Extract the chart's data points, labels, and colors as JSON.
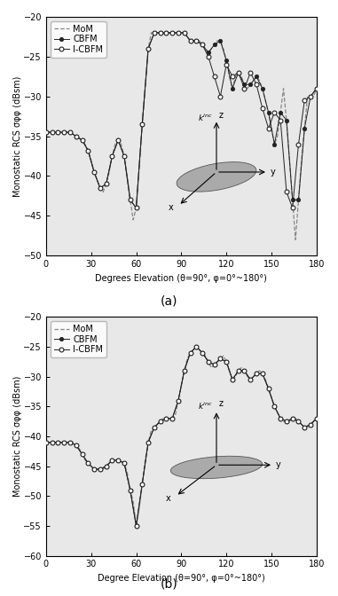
{
  "fig_width": 3.81,
  "fig_height": 6.72,
  "dpi": 100,
  "subplot_a": {
    "xlabel": "Degrees Elevation (θ=90°, φ=0°~180°)",
    "ylabel": "Monostatic RCS σφφ (dBsm)",
    "ylim": [
      -50,
      -20
    ],
    "xlim": [
      0,
      180
    ],
    "yticks": [
      -50,
      -45,
      -40,
      -35,
      -30,
      -25,
      -20
    ],
    "xticks": [
      0,
      30,
      60,
      90,
      120,
      150,
      180
    ],
    "x": [
      0,
      2,
      4,
      6,
      8,
      10,
      12,
      14,
      16,
      18,
      20,
      22,
      24,
      26,
      28,
      30,
      32,
      34,
      36,
      38,
      40,
      42,
      44,
      46,
      48,
      50,
      52,
      54,
      56,
      58,
      60,
      62,
      64,
      66,
      68,
      70,
      72,
      74,
      76,
      78,
      80,
      82,
      84,
      86,
      88,
      90,
      92,
      94,
      96,
      98,
      100,
      102,
      104,
      106,
      108,
      110,
      112,
      114,
      116,
      118,
      120,
      122,
      124,
      126,
      128,
      130,
      132,
      134,
      136,
      138,
      140,
      142,
      144,
      146,
      148,
      150,
      152,
      154,
      156,
      158,
      160,
      162,
      164,
      166,
      168,
      170,
      172,
      174,
      176,
      178,
      180
    ],
    "mom": [
      -34.5,
      -34.5,
      -34.5,
      -34.5,
      -34.5,
      -34.5,
      -34.5,
      -34.5,
      -34.5,
      -34.8,
      -35.0,
      -35.2,
      -35.5,
      -36.0,
      -36.8,
      -38.0,
      -39.5,
      -40.5,
      -41.5,
      -42.0,
      -41.0,
      -39.5,
      -37.5,
      -36.0,
      -35.5,
      -36.0,
      -37.5,
      -40.0,
      -43.0,
      -45.5,
      -44.0,
      -39.0,
      -33.5,
      -29.0,
      -24.0,
      -22.0,
      -22.0,
      -22.0,
      -22.0,
      -22.0,
      -22.0,
      -22.0,
      -22.0,
      -22.0,
      -22.0,
      -22.0,
      -22.0,
      -22.5,
      -23.0,
      -23.0,
      -23.0,
      -23.0,
      -23.5,
      -24.0,
      -24.5,
      -24.0,
      -23.5,
      -23.0,
      -23.0,
      -24.0,
      -25.5,
      -27.5,
      -29.0,
      -27.5,
      -27.0,
      -27.5,
      -28.5,
      -29.0,
      -28.5,
      -28.0,
      -27.5,
      -28.0,
      -29.0,
      -30.5,
      -32.0,
      -34.0,
      -36.0,
      -35.0,
      -32.0,
      -29.0,
      -33.0,
      -38.0,
      -43.0,
      -48.0,
      -43.0,
      -38.0,
      -34.0,
      -30.0,
      -30.0,
      -30.0,
      -29.0
    ],
    "cbfm": [
      -34.5,
      -34.5,
      -34.5,
      -34.5,
      -34.5,
      -34.5,
      -34.5,
      -34.5,
      -34.5,
      -34.8,
      -35.0,
      -35.2,
      -35.5,
      -36.0,
      -36.8,
      -38.0,
      -39.5,
      -40.5,
      -41.5,
      -42.0,
      -41.0,
      -39.5,
      -37.5,
      -36.0,
      -35.5,
      -36.0,
      -37.5,
      -40.0,
      -43.0,
      -45.5,
      -44.0,
      -39.0,
      -33.5,
      -29.0,
      -24.0,
      -22.0,
      -22.0,
      -22.0,
      -22.0,
      -22.0,
      -22.0,
      -22.0,
      -22.0,
      -22.0,
      -22.0,
      -22.0,
      -22.0,
      -22.5,
      -23.0,
      -23.0,
      -23.0,
      -23.0,
      -23.5,
      -24.0,
      -24.5,
      -24.0,
      -23.5,
      -23.0,
      -23.0,
      -24.0,
      -25.5,
      -27.5,
      -29.0,
      -27.5,
      -27.0,
      -27.5,
      -28.5,
      -29.0,
      -28.5,
      -28.0,
      -27.5,
      -28.0,
      -29.0,
      -30.5,
      -32.0,
      -34.0,
      -36.0,
      -35.0,
      -32.0,
      -29.0,
      -33.0,
      -38.0,
      -43.0,
      -48.5,
      -43.0,
      -38.0,
      -34.0,
      -30.0,
      -30.0,
      -30.0,
      -29.0
    ],
    "icbfm": [
      -34.5,
      -34.5,
      -34.5,
      -34.5,
      -34.5,
      -34.5,
      -34.5,
      -34.5,
      -34.5,
      -34.8,
      -35.0,
      -35.2,
      -35.5,
      -36.0,
      -36.8,
      -38.0,
      -39.5,
      -40.5,
      -41.5,
      -42.0,
      -41.0,
      -39.5,
      -37.5,
      -36.0,
      -35.5,
      -36.0,
      -37.5,
      -40.0,
      -43.0,
      -46.5,
      -44.0,
      -39.0,
      -33.5,
      -29.0,
      -24.0,
      -22.0,
      -22.0,
      -22.0,
      -22.0,
      -22.0,
      -22.0,
      -22.0,
      -22.0,
      -22.0,
      -22.0,
      -22.0,
      -22.0,
      -22.5,
      -23.0,
      -23.0,
      -23.0,
      -23.0,
      -23.5,
      -24.0,
      -25.0,
      -26.0,
      -27.5,
      -29.0,
      -30.0,
      -25.0,
      -26.0,
      -28.0,
      -27.5,
      -27.0,
      -27.0,
      -28.0,
      -29.0,
      -28.0,
      -27.0,
      -27.5,
      -28.5,
      -30.0,
      -31.5,
      -33.0,
      -34.0,
      -40.0,
      -32.0,
      -29.0,
      -33.0,
      -37.0,
      -42.0,
      -47.0,
      -44.0,
      -40.0,
      -36.0,
      -33.0,
      -30.5,
      -30.0,
      -30.0,
      -29.0,
      -29.0
    ]
  },
  "subplot_b": {
    "xlabel": "Degree Elevation (θ=90°, φ=0°~180°)",
    "ylabel": "Monostatic RCS σφφ (dBsm)",
    "ylim": [
      -60,
      -20
    ],
    "xlim": [
      0,
      180
    ],
    "yticks": [
      -60,
      -55,
      -50,
      -45,
      -40,
      -35,
      -30,
      -25,
      -20
    ],
    "xticks": [
      0,
      30,
      60,
      90,
      120,
      150,
      180
    ],
    "x": [
      0,
      2,
      4,
      6,
      8,
      10,
      12,
      14,
      16,
      18,
      20,
      22,
      24,
      26,
      28,
      30,
      32,
      34,
      36,
      38,
      40,
      42,
      44,
      46,
      48,
      50,
      52,
      54,
      56,
      58,
      60,
      62,
      64,
      66,
      68,
      70,
      72,
      74,
      76,
      78,
      80,
      82,
      84,
      86,
      88,
      90,
      92,
      94,
      96,
      98,
      100,
      102,
      104,
      106,
      108,
      110,
      112,
      114,
      116,
      118,
      120,
      122,
      124,
      126,
      128,
      130,
      132,
      134,
      136,
      138,
      140,
      142,
      144,
      146,
      148,
      150,
      152,
      154,
      156,
      158,
      160,
      162,
      164,
      166,
      168,
      170,
      172,
      174,
      176,
      178,
      180
    ],
    "mom": [
      -41.0,
      -41.0,
      -41.0,
      -41.0,
      -41.0,
      -41.0,
      -41.0,
      -41.0,
      -41.0,
      -41.0,
      -41.5,
      -42.0,
      -43.0,
      -44.0,
      -44.5,
      -45.0,
      -45.5,
      -45.5,
      -45.5,
      -45.5,
      -45.0,
      -44.5,
      -44.0,
      -44.0,
      -44.0,
      -44.0,
      -44.5,
      -46.0,
      -49.0,
      -51.0,
      -55.0,
      -52.0,
      -48.0,
      -44.0,
      -41.0,
      -39.0,
      -38.5,
      -38.0,
      -37.5,
      -37.0,
      -37.0,
      -37.0,
      -37.0,
      -36.5,
      -34.0,
      -31.5,
      -29.0,
      -27.0,
      -26.0,
      -25.5,
      -25.0,
      -25.5,
      -26.0,
      -26.5,
      -27.5,
      -28.5,
      -28.0,
      -27.5,
      -27.0,
      -26.5,
      -27.5,
      -29.0,
      -30.5,
      -30.0,
      -29.0,
      -28.5,
      -29.0,
      -30.0,
      -30.5,
      -30.0,
      -29.5,
      -29.0,
      -29.5,
      -30.5,
      -32.0,
      -33.5,
      -35.0,
      -36.0,
      -37.0,
      -37.5,
      -37.5,
      -37.5,
      -37.0,
      -37.0,
      -37.5,
      -38.0,
      -38.5,
      -38.5,
      -38.0,
      -37.5,
      -37.0
    ],
    "cbfm": [
      -41.0,
      -41.0,
      -41.0,
      -41.0,
      -41.0,
      -41.0,
      -41.0,
      -41.0,
      -41.0,
      -41.0,
      -41.5,
      -42.0,
      -43.0,
      -44.0,
      -44.5,
      -45.0,
      -45.5,
      -45.5,
      -45.5,
      -45.5,
      -45.0,
      -44.5,
      -44.0,
      -44.0,
      -44.0,
      -44.0,
      -44.5,
      -46.0,
      -49.0,
      -51.0,
      -55.0,
      -52.0,
      -48.0,
      -44.0,
      -41.0,
      -39.0,
      -38.5,
      -38.0,
      -37.5,
      -37.0,
      -37.0,
      -37.0,
      -37.0,
      -36.5,
      -34.0,
      -31.5,
      -29.0,
      -27.0,
      -26.0,
      -25.5,
      -25.0,
      -25.5,
      -26.0,
      -26.5,
      -27.5,
      -28.5,
      -28.0,
      -27.5,
      -27.0,
      -26.5,
      -27.5,
      -29.0,
      -30.5,
      -30.0,
      -29.0,
      -28.5,
      -29.0,
      -30.0,
      -30.5,
      -30.0,
      -29.5,
      -29.0,
      -29.5,
      -30.5,
      -32.0,
      -33.5,
      -35.0,
      -36.0,
      -37.0,
      -37.5,
      -37.5,
      -37.5,
      -37.0,
      -37.0,
      -37.5,
      -38.0,
      -38.5,
      -38.5,
      -38.0,
      -37.5,
      -37.0
    ],
    "icbfm": [
      -41.0,
      -41.0,
      -41.0,
      -41.0,
      -41.0,
      -41.0,
      -41.0,
      -41.0,
      -41.0,
      -41.0,
      -41.5,
      -42.0,
      -43.0,
      -44.0,
      -44.5,
      -45.0,
      -45.5,
      -45.5,
      -45.5,
      -45.5,
      -45.0,
      -44.5,
      -44.0,
      -44.0,
      -44.0,
      -44.0,
      -44.5,
      -46.0,
      -49.0,
      -51.0,
      -55.0,
      -52.0,
      -48.0,
      -44.0,
      -41.0,
      -39.0,
      -38.5,
      -38.0,
      -37.5,
      -37.0,
      -37.0,
      -37.0,
      -37.0,
      -36.5,
      -34.0,
      -31.5,
      -29.0,
      -27.0,
      -26.0,
      -25.5,
      -25.0,
      -25.5,
      -26.0,
      -26.5,
      -27.5,
      -28.5,
      -28.0,
      -27.5,
      -27.0,
      -26.5,
      -27.5,
      -29.0,
      -30.5,
      -30.0,
      -29.0,
      -28.5,
      -29.0,
      -30.0,
      -30.5,
      -30.0,
      -29.5,
      -29.0,
      -29.5,
      -30.5,
      -32.0,
      -33.5,
      -35.0,
      -36.0,
      -37.0,
      -37.5,
      -37.5,
      -37.5,
      -37.0,
      -37.0,
      -37.5,
      -38.0,
      -38.5,
      -38.5,
      -38.0,
      -37.5,
      -37.0
    ]
  },
  "gray_bg": "#e8e8e8",
  "mom_color": "#888888",
  "cbfm_color": "#222222",
  "icbfm_color": "#222222",
  "label_mom": "MoM",
  "label_cbfm": "CBFM",
  "label_icbfm": "I-CBFM",
  "caption_a": "(a)",
  "caption_b": "(b)"
}
